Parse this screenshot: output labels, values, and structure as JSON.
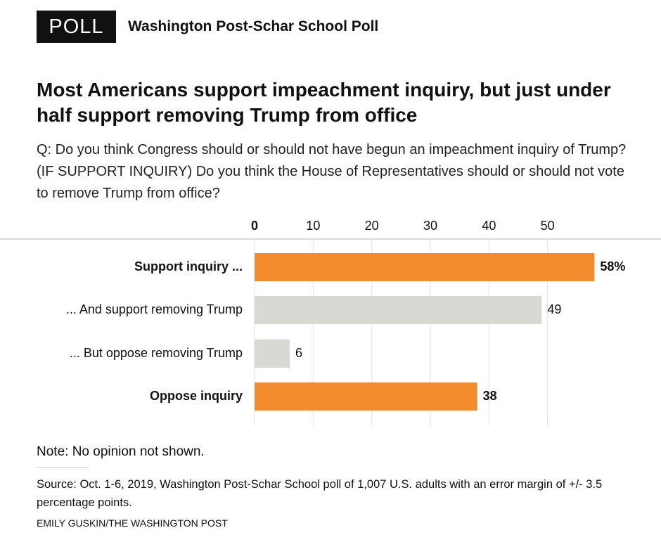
{
  "chart_data": {
    "type": "barh",
    "badge": "POLL",
    "source_name": "Washington Post-Schar School Poll",
    "title": "Most Americans support impeachment inquiry, but just under half support removing Trump from office",
    "subtitle": "Q: Do you think Congress should or should not have begun an impeachment inquiry of Trump? (IF SUPPORT INQUIRY) Do you think the House of Representatives should or should not vote to remove Trump from office?",
    "categories": [
      "Support inquiry ...",
      "... And support removing Trump",
      "... But oppose removing Trump",
      "Oppose inquiry"
    ],
    "values": [
      58,
      49,
      6,
      38
    ],
    "value_labels": [
      "58%",
      "49",
      "6",
      "38"
    ],
    "colors": [
      "#f28a2e",
      "#d9d9d4",
      "#d9d9d4",
      "#f28a2e"
    ],
    "xlim": [
      0,
      60
    ],
    "xticks": [
      0,
      10,
      20,
      30,
      40,
      50
    ],
    "grid": true,
    "note": "Note: No opinion not shown.",
    "source": "Source: Oct. 1-6, 2019, Washington Post-Schar School poll of 1,007 U.S. adults with an error margin of +/- 3.5 percentage points.",
    "credit": "EMILY GUSKIN/THE WASHINGTON POST"
  }
}
